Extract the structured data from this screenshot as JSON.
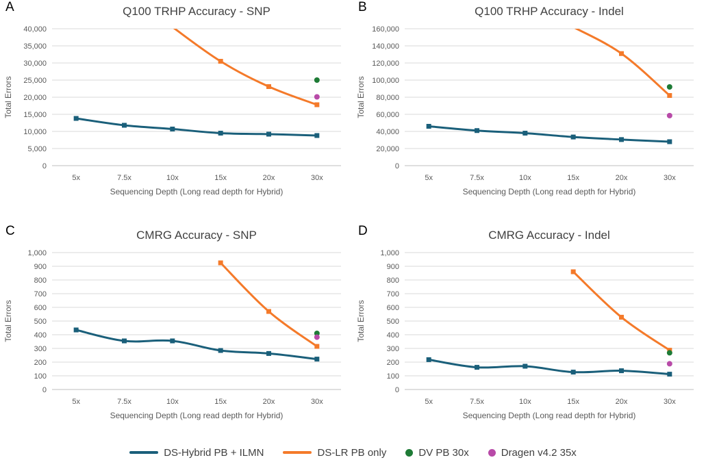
{
  "chart_data": [
    {
      "type": "line",
      "letter": "A",
      "title": "Q100 TRHP Accuracy - SNP",
      "xlabel": "Sequencing Depth (Long read depth for Hybrid)",
      "ylabel": "Total Errors",
      "categories": [
        "5x",
        "7.5x",
        "10x",
        "15x",
        "20x",
        "30x"
      ],
      "ylim": [
        0,
        40000
      ],
      "yticks": [
        "0",
        "5,000",
        "10,000",
        "15,000",
        "20,000",
        "25,000",
        "30,000",
        "35,000",
        "40,000"
      ],
      "series": [
        {
          "name": "DS-Hybrid PB + ILMN",
          "color": "#1a5f7a",
          "values": [
            13800,
            11800,
            10700,
            9500,
            9200,
            8800
          ],
          "marker": "square"
        },
        {
          "name": "DS-LR PB only",
          "color": "#f47a2a",
          "values": [
            null,
            null,
            40500,
            30500,
            23100,
            17800
          ],
          "marker": "square"
        }
      ],
      "points": [
        {
          "name": "DV PB 30x",
          "color": "#1e7b36",
          "category": "30x",
          "value": 25000
        },
        {
          "name": "Dragen v4.2 35x",
          "color": "#b84aa8",
          "category": "30x",
          "value": 20100
        }
      ]
    },
    {
      "type": "line",
      "letter": "B",
      "title": "Q100 TRHP Accuracy - Indel",
      "xlabel": "Sequencing Depth (Long read depth for Hybrid)",
      "ylabel": "Total Errors",
      "categories": [
        "5x",
        "7.5x",
        "10x",
        "15x",
        "20x",
        "30x"
      ],
      "ylim": [
        0,
        160000
      ],
      "yticks": [
        "0",
        "20,000",
        "40,000",
        "60,000",
        "80,000",
        "100,000",
        "120,000",
        "140,000",
        "160,000"
      ],
      "series": [
        {
          "name": "DS-Hybrid PB + ILMN",
          "color": "#1a5f7a",
          "values": [
            46000,
            41000,
            38000,
            33500,
            30500,
            28000
          ],
          "marker": "square"
        },
        {
          "name": "DS-LR PB only",
          "color": "#f47a2a",
          "values": [
            null,
            null,
            null,
            162000,
            131000,
            82000
          ],
          "marker": "square"
        }
      ],
      "points": [
        {
          "name": "DV PB 30x",
          "color": "#1e7b36",
          "category": "30x",
          "value": 92000
        },
        {
          "name": "Dragen v4.2 35x",
          "color": "#b84aa8",
          "category": "30x",
          "value": 58500
        }
      ]
    },
    {
      "type": "line",
      "letter": "C",
      "title": "CMRG Accuracy - SNP",
      "xlabel": "Sequencing Depth (Long read depth for Hybrid)",
      "ylabel": "Total Errors",
      "categories": [
        "5x",
        "7.5x",
        "10x",
        "15x",
        "20x",
        "30x"
      ],
      "ylim": [
        0,
        1000
      ],
      "yticks": [
        "0",
        "100",
        "200",
        "300",
        "400",
        "500",
        "600",
        "700",
        "800",
        "900",
        "1,000"
      ],
      "series": [
        {
          "name": "DS-Hybrid PB + ILMN",
          "color": "#1a5f7a",
          "values": [
            435,
            355,
            355,
            285,
            263,
            222
          ],
          "marker": "square"
        },
        {
          "name": "DS-LR PB only",
          "color": "#f47a2a",
          "values": [
            null,
            null,
            null,
            925,
            570,
            315
          ],
          "marker": "square"
        }
      ],
      "points": [
        {
          "name": "DV PB 30x",
          "color": "#1e7b36",
          "category": "30x",
          "value": 410
        },
        {
          "name": "Dragen v4.2 35x",
          "color": "#b84aa8",
          "category": "30x",
          "value": 382
        }
      ]
    },
    {
      "type": "line",
      "letter": "D",
      "title": "CMRG Accuracy - Indel",
      "xlabel": "Sequencing Depth (Long read depth for Hybrid)",
      "ylabel": "Total Errors",
      "categories": [
        "5x",
        "7.5x",
        "10x",
        "15x",
        "20x",
        "30x"
      ],
      "ylim": [
        0,
        1000
      ],
      "yticks": [
        "0",
        "100",
        "200",
        "300",
        "400",
        "500",
        "600",
        "700",
        "800",
        "900",
        "1,000"
      ],
      "series": [
        {
          "name": "DS-Hybrid PB + ILMN",
          "color": "#1a5f7a",
          "values": [
            218,
            162,
            170,
            127,
            137,
            112
          ],
          "marker": "square"
        },
        {
          "name": "DS-LR PB only",
          "color": "#f47a2a",
          "values": [
            null,
            null,
            null,
            860,
            528,
            287
          ],
          "marker": "square"
        }
      ],
      "points": [
        {
          "name": "DV PB 30x",
          "color": "#1e7b36",
          "category": "30x",
          "value": 268
        },
        {
          "name": "Dragen v4.2 35x",
          "color": "#b84aa8",
          "category": "30x",
          "value": 188
        }
      ]
    }
  ],
  "legend": [
    {
      "label": "DS-Hybrid PB + ILMN",
      "kind": "line",
      "color": "#1a5f7a"
    },
    {
      "label": "DS-LR PB only",
      "kind": "line",
      "color": "#f47a2a"
    },
    {
      "label": "DV PB 30x",
      "kind": "dot",
      "color": "#1e7b36"
    },
    {
      "label": "Dragen v4.2 35x",
      "kind": "dot",
      "color": "#b84aa8"
    }
  ]
}
